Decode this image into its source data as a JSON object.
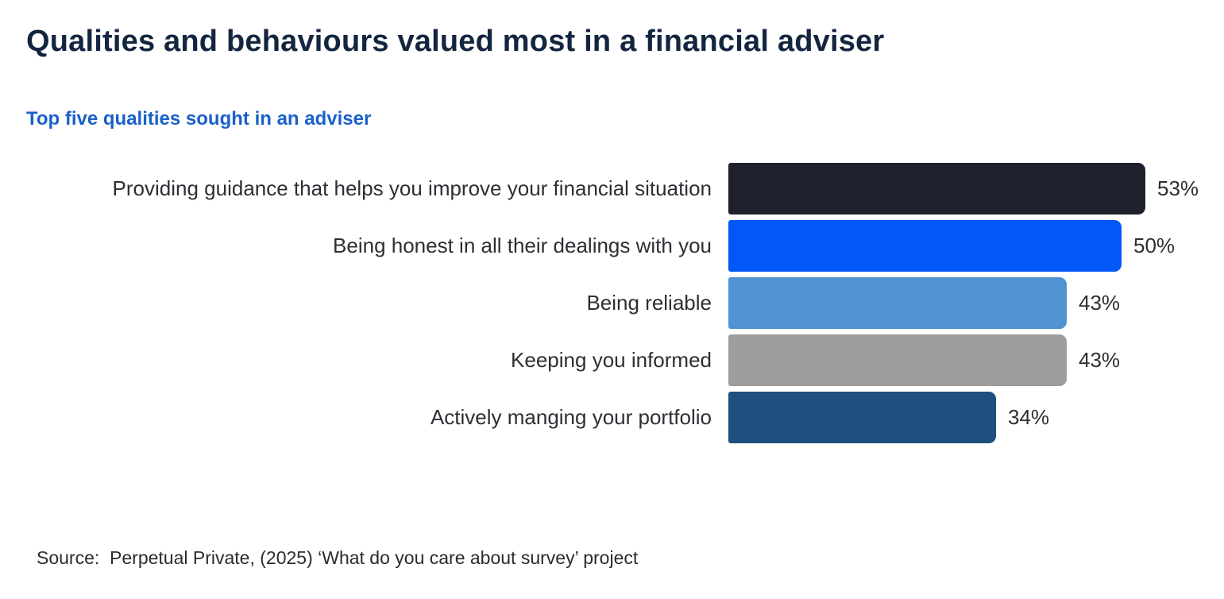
{
  "header": {
    "title": "Qualities and behaviours valued most in a financial adviser",
    "subtitle": "Top five qualities sought in an adviser"
  },
  "chart_data": {
    "type": "bar",
    "orientation": "horizontal",
    "title": "Top five qualities sought in an adviser",
    "categories": [
      "Providing guidance that helps you improve your financial situation",
      "Being honest in all their dealings with you",
      "Being reliable",
      "Keeping you informed",
      "Actively manging your portfolio"
    ],
    "values": [
      53,
      50,
      43,
      43,
      34
    ],
    "value_suffix": "%",
    "bar_colors": [
      "#1e212c",
      "#0356f8",
      "#4f93d3",
      "#9d9e9c",
      "#1e4f7e"
    ],
    "xlim": [
      0,
      55
    ],
    "grid": false,
    "legend": false,
    "data_labels": [
      "53%",
      "50%",
      "43%",
      "43%",
      "34%"
    ]
  },
  "footer": {
    "source": "Source:  Perpetual Private, (2025) ‘What do you care about survey’ project"
  },
  "colors": {
    "title-color": "#13253f",
    "subtitle-color": "#1a60c9",
    "label-color": "#2e2e35",
    "value-color": "#2e2e33",
    "source-color": "#2b2b30",
    "background": "#ffffff"
  }
}
